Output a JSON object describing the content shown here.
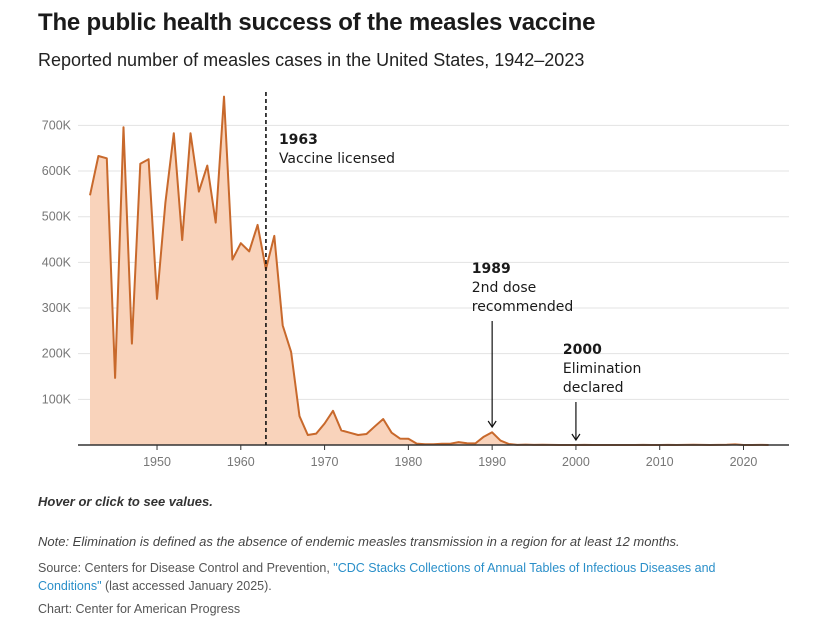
{
  "title": "The public health success of the measles vaccine",
  "subtitle": "Reported number of measles cases in the United States, 1942–2023",
  "hover_hint": "Hover or click to see values.",
  "note": "Note: Elimination is defined as the absence of endemic measles transmission in a region for at least 12 months.",
  "source": {
    "prefix": "Source: Centers for Disease Control and Prevention, ",
    "link_text": "\"CDC Stacks Collections of Annual Tables of Infectious Diseases and Conditions\"",
    "suffix": " (last accessed January 2025)."
  },
  "credit": "Chart: Center for American Progress",
  "colors": {
    "line": "#c8692c",
    "area": "#f9d3bb",
    "grid": "#e3e3e3",
    "axis": "#333333"
  },
  "chart_data": {
    "type": "area",
    "title": "The public health success of the measles vaccine",
    "subtitle": "Reported number of measles cases in the United States, 1942–2023",
    "xlabel": "",
    "ylabel": "",
    "xlim": [
      1942,
      2024
    ],
    "ylim": [
      0,
      760000
    ],
    "grid": true,
    "x_ticks": [
      1950,
      1960,
      1970,
      1980,
      1990,
      2000,
      2010,
      2020
    ],
    "y_ticks": [
      {
        "value": 100000,
        "label": "100K"
      },
      {
        "value": 200000,
        "label": "200K"
      },
      {
        "value": 300000,
        "label": "300K"
      },
      {
        "value": 400000,
        "label": "400K"
      },
      {
        "value": 500000,
        "label": "500K"
      },
      {
        "value": 600000,
        "label": "600K"
      },
      {
        "value": 700000,
        "label": "700K"
      }
    ],
    "series": [
      {
        "x": [
          1942,
          1943,
          1944,
          1945,
          1946,
          1947,
          1948,
          1949,
          1950,
          1951,
          1952,
          1953,
          1954,
          1955,
          1956,
          1957,
          1958,
          1959,
          1960,
          1961,
          1962,
          1963,
          1964,
          1965,
          1966,
          1967,
          1968,
          1969,
          1970,
          1971,
          1972,
          1973,
          1974,
          1975,
          1976,
          1977,
          1978,
          1979,
          1980,
          1981,
          1982,
          1983,
          1984,
          1985,
          1986,
          1987,
          1988,
          1989,
          1990,
          1991,
          1992,
          1993,
          1994,
          1995,
          1996,
          1997,
          1998,
          1999,
          2000,
          2001,
          2002,
          2003,
          2004,
          2005,
          2006,
          2007,
          2008,
          2009,
          2010,
          2011,
          2012,
          2013,
          2014,
          2015,
          2016,
          2017,
          2018,
          2019,
          2020,
          2021,
          2022,
          2023
        ],
        "values": [
          547000,
          633000,
          628000,
          147000,
          696000,
          222000,
          616000,
          626000,
          320000,
          531000,
          683000,
          449000,
          683000,
          555000,
          612000,
          487000,
          763000,
          406000,
          442000,
          424000,
          482000,
          385000,
          458000,
          262000,
          204000,
          63000,
          22000,
          25000,
          47000,
          75000,
          32000,
          27000,
          22000,
          24000,
          41000,
          57000,
          27000,
          14000,
          13500,
          3100,
          1700,
          1500,
          2600,
          2800,
          6300,
          3700,
          3400,
          18200,
          27800,
          9600,
          2200,
          310,
          960,
          310,
          510,
          140,
          100,
          100,
          86,
          116,
          44,
          56,
          37,
          66,
          55,
          43,
          140,
          71,
          63,
          220,
          55,
          187,
          667,
          188,
          86,
          120,
          375,
          1274,
          13,
          49,
          121,
          59
        ]
      }
    ],
    "annotations": [
      {
        "year": "1963",
        "label": "Vaccine licensed",
        "x": 1963,
        "style": "dashed-line"
      },
      {
        "year": "1989",
        "label": "2nd dose recommended",
        "lines": [
          "2nd dose",
          "recommended"
        ],
        "x": 1989,
        "style": "arrow"
      },
      {
        "year": "2000",
        "label": "Elimination declared",
        "lines": [
          "Elimination",
          "declared"
        ],
        "x": 2000,
        "style": "arrow"
      }
    ]
  }
}
